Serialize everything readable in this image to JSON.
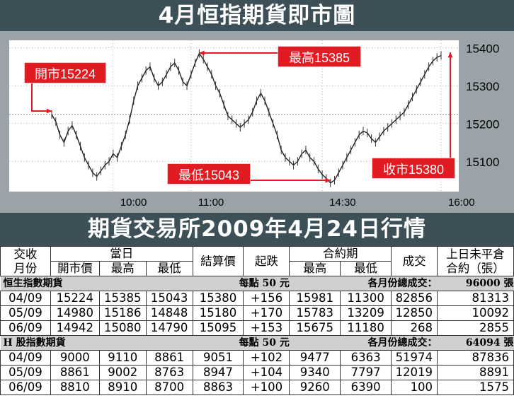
{
  "title": "4月恒指期貨即市圖",
  "table_title": "期貨交易所2009年4月24日行情",
  "colors": {
    "banner": "#3d5057",
    "callout": "#e11b22",
    "panel": "#9aa4a8",
    "section": "#d0d0d0"
  },
  "chart_data": {
    "type": "line",
    "title": "4月恒指期貨即市圖",
    "x_ticks": [
      "10:00",
      "11:00",
      "14:30",
      "16:00"
    ],
    "y_ticks": [
      15100,
      15200,
      15300,
      15400
    ],
    "ylim": [
      15020,
      15420
    ],
    "grid": true,
    "series": [
      {
        "values": [
          15224,
          15205,
          15170,
          15150,
          15180,
          15195,
          15170,
          15140,
          15110,
          15090,
          15070,
          15060,
          15075,
          15090,
          15100,
          15120,
          15110,
          15140,
          15170,
          15210,
          15260,
          15300,
          15320,
          15340,
          15350,
          15320,
          15300,
          15310,
          15330,
          15350,
          15360,
          15340,
          15310,
          15300,
          15330,
          15360,
          15385,
          15370,
          15350,
          15330,
          15300,
          15280,
          15250,
          15220,
          15210,
          15200,
          15190,
          15200,
          15210,
          15230,
          15260,
          15280,
          15260,
          15230,
          15200,
          15170,
          15130,
          15110,
          15100,
          15090,
          15100,
          15120,
          15130,
          15110,
          15100,
          15080,
          15065,
          15055,
          15043,
          15050,
          15070,
          15090,
          15110,
          15130,
          15150,
          15170,
          15180,
          15175,
          15160,
          15150,
          15165,
          15180,
          15190,
          15200,
          15210,
          15220,
          15230,
          15250,
          15270,
          15290,
          15310,
          15330,
          15350,
          15365,
          15375,
          15380
        ]
      }
    ],
    "annotations": {
      "open": "開市15224",
      "high": "最高15385",
      "low": "最低15043",
      "close": "收市15380"
    }
  },
  "table": {
    "hdr": {
      "trade": "交收",
      "month": "月份",
      "day": "當日",
      "open": "開市價",
      "high": "最高",
      "low": "最低",
      "settle": "結算價",
      "change": "起跌",
      "contract": "合約期",
      "c_high": "最高",
      "c_low": "最低",
      "volume": "成交",
      "oi1": "上日未平倉",
      "oi2": "合約（張）"
    },
    "sections": [
      {
        "name": "恒生指數期貨",
        "per_point": "每點 50 元",
        "total_label": "各月份總成交：",
        "total": "96000 張",
        "rows": [
          [
            "04/09",
            "15224",
            "15385",
            "15043",
            "15380",
            "+156",
            "15981",
            "11300",
            "82856",
            "81313"
          ],
          [
            "05/09",
            "14980",
            "15186",
            "14848",
            "15180",
            "+170",
            "15783",
            "13209",
            "12850",
            "10092"
          ],
          [
            "06/09",
            "14942",
            "15080",
            "14790",
            "15095",
            "+153",
            "15675",
            "11180",
            "268",
            "2855"
          ]
        ]
      },
      {
        "name": "H 股指數期貨",
        "per_point": "每點 50 元",
        "total_label": "各月份總成交：",
        "total": "64094 張",
        "rows": [
          [
            "04/09",
            "9000",
            "9110",
            "8861",
            "9051",
            "+102",
            "9477",
            "6363",
            "51974",
            "87836"
          ],
          [
            "05/09",
            "8861",
            "9002",
            "8763",
            "8947",
            "+104",
            "9340",
            "7797",
            "12019",
            "8891"
          ],
          [
            "06/09",
            "8810",
            "8910",
            "8700",
            "8863",
            "+100",
            "9260",
            "6390",
            "100",
            "1575"
          ]
        ]
      }
    ]
  }
}
